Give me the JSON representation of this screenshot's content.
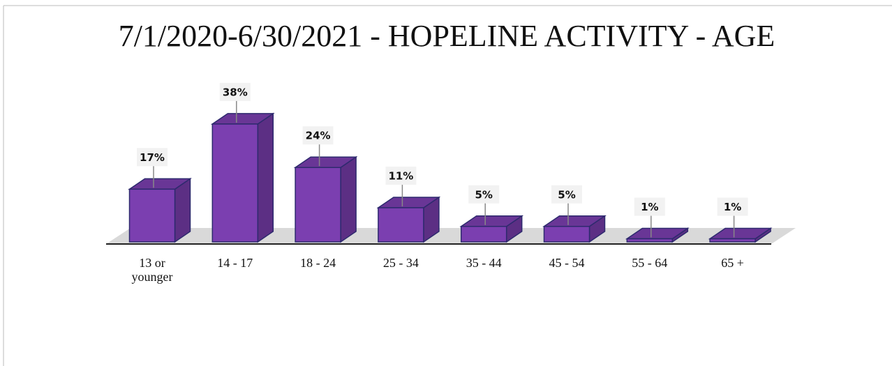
{
  "chart_data": {
    "type": "bar3d",
    "title": "7/1/2020-6/30/2021 - HOPELINE ACTIVITY  - AGE",
    "categories": [
      "13 or younger",
      "14 - 17",
      "18 - 24",
      "25 - 34",
      "35 - 44",
      "45 - 54",
      "55 - 64",
      "65 +"
    ],
    "values": [
      17,
      38,
      24,
      11,
      5,
      5,
      1,
      1
    ],
    "value_labels": [
      "17%",
      "38%",
      "24%",
      "11%",
      "5%",
      "5%",
      "1%",
      "1%"
    ],
    "color": "#7b3fb0"
  }
}
